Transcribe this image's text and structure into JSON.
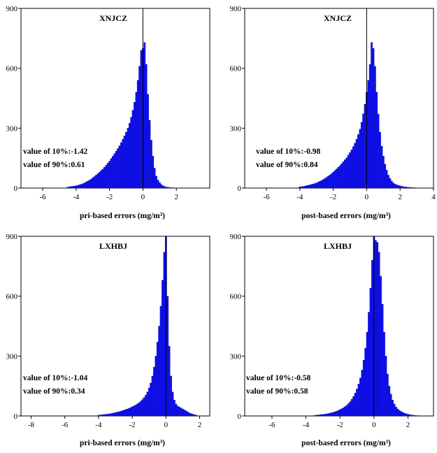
{
  "chart_data": [
    {
      "type": "bar",
      "title": "XNJCZ",
      "xlabel": "pri-based errors (mg/m³)",
      "ylabel": "",
      "xlim": [
        -7.3,
        4
      ],
      "ylim": [
        0,
        900
      ],
      "xticks": [
        -6,
        -4,
        -2,
        0,
        2
      ],
      "yticks": [
        0,
        300,
        600,
        900
      ],
      "annotations": [
        "value of 10%:-1.42",
        "value of 90%:0.61"
      ],
      "bin_width": 0.1,
      "x": [
        -4.5,
        -4.4,
        -4.3,
        -4.2,
        -4.1,
        -4.0,
        -3.9,
        -3.8,
        -3.7,
        -3.6,
        -3.5,
        -3.4,
        -3.3,
        -3.2,
        -3.1,
        -3.0,
        -2.9,
        -2.8,
        -2.7,
        -2.6,
        -2.5,
        -2.4,
        -2.3,
        -2.2,
        -2.1,
        -2.0,
        -1.9,
        -1.8,
        -1.7,
        -1.6,
        -1.5,
        -1.4,
        -1.3,
        -1.2,
        -1.1,
        -1.0,
        -0.9,
        -0.8,
        -0.7,
        -0.6,
        -0.5,
        -0.4,
        -0.3,
        -0.2,
        -0.1,
        0.0,
        0.1,
        0.2,
        0.3,
        0.4,
        0.5,
        0.6,
        0.7,
        0.8,
        0.9,
        1.0,
        1.1,
        1.2,
        1.3,
        1.4,
        1.5,
        1.6,
        1.7,
        1.8,
        1.9,
        2.0,
        2.1,
        2.2,
        2.3,
        2.4
      ],
      "values": [
        5,
        6,
        8,
        9,
        10,
        12,
        14,
        16,
        19,
        22,
        26,
        30,
        35,
        40,
        45,
        52,
        58,
        65,
        72,
        80,
        88,
        95,
        105,
        115,
        125,
        135,
        148,
        160,
        172,
        185,
        198,
        212,
        228,
        245,
        262,
        280,
        300,
        325,
        355,
        390,
        430,
        480,
        540,
        610,
        690,
        700,
        730,
        620,
        470,
        340,
        240,
        160,
        100,
        60,
        40,
        28,
        18,
        12,
        8,
        5,
        4,
        3,
        2,
        2,
        1,
        1,
        1,
        1,
        0,
        0
      ]
    },
    {
      "type": "bar",
      "title": "XNJCZ",
      "xlabel": "post-based errors (mg/m³)",
      "ylabel": "",
      "xlim": [
        -7.3,
        4
      ],
      "ylim": [
        0,
        900
      ],
      "xticks": [
        -6,
        -4,
        -2,
        0,
        2,
        4
      ],
      "yticks": [
        0,
        300,
        600,
        900
      ],
      "annotations": [
        "value of 10%:-0.98",
        "value of 90%:0.84"
      ],
      "bin_width": 0.1,
      "x": [
        -4.0,
        -3.9,
        -3.8,
        -3.7,
        -3.6,
        -3.5,
        -3.4,
        -3.3,
        -3.2,
        -3.1,
        -3.0,
        -2.9,
        -2.8,
        -2.7,
        -2.6,
        -2.5,
        -2.4,
        -2.3,
        -2.2,
        -2.1,
        -2.0,
        -1.9,
        -1.8,
        -1.7,
        -1.6,
        -1.5,
        -1.4,
        -1.3,
        -1.2,
        -1.1,
        -1.0,
        -0.9,
        -0.8,
        -0.7,
        -0.6,
        -0.5,
        -0.4,
        -0.3,
        -0.2,
        -0.1,
        0.0,
        0.1,
        0.2,
        0.3,
        0.4,
        0.5,
        0.6,
        0.7,
        0.8,
        0.9,
        1.0,
        1.1,
        1.2,
        1.3,
        1.4,
        1.5,
        1.6,
        1.7,
        1.8,
        1.9,
        2.0,
        2.1,
        2.2,
        2.3,
        2.4,
        2.5,
        2.6,
        2.7,
        2.8,
        2.9,
        3.0
      ],
      "values": [
        6,
        7,
        8,
        10,
        12,
        14,
        16,
        18,
        20,
        23,
        26,
        30,
        34,
        38,
        43,
        48,
        54,
        60,
        66,
        72,
        80,
        88,
        96,
        104,
        112,
        122,
        132,
        142,
        152,
        165,
        178,
        192,
        208,
        225,
        245,
        268,
        295,
        330,
        372,
        420,
        480,
        540,
        620,
        730,
        700,
        610,
        480,
        370,
        280,
        210,
        160,
        120,
        90,
        65,
        48,
        35,
        26,
        20,
        16,
        13,
        11,
        9,
        7,
        6,
        5,
        4,
        3,
        3,
        2,
        2,
        1
      ]
    },
    {
      "type": "bar",
      "title": "LXHBJ",
      "xlabel": "pri-based errors (mg/m³)",
      "ylabel": "",
      "xlim": [
        -8.6,
        2.6
      ],
      "ylim": [
        0,
        900
      ],
      "xticks": [
        -8,
        -6,
        -4,
        -2,
        0,
        2
      ],
      "yticks": [
        0,
        300,
        600,
        900
      ],
      "annotations": [
        "value of 10%:-1.04",
        "value of 90%:0.34"
      ],
      "bin_width": 0.1,
      "x": [
        -4.0,
        -3.9,
        -3.8,
        -3.7,
        -3.6,
        -3.5,
        -3.4,
        -3.3,
        -3.2,
        -3.1,
        -3.0,
        -2.9,
        -2.8,
        -2.7,
        -2.6,
        -2.5,
        -2.4,
        -2.3,
        -2.2,
        -2.1,
        -2.0,
        -1.9,
        -1.8,
        -1.7,
        -1.6,
        -1.5,
        -1.4,
        -1.3,
        -1.2,
        -1.1,
        -1.0,
        -0.9,
        -0.8,
        -0.7,
        -0.6,
        -0.5,
        -0.4,
        -0.3,
        -0.2,
        -0.1,
        0.0,
        0.1,
        0.2,
        0.3,
        0.4,
        0.5,
        0.6,
        0.7,
        0.8,
        0.9,
        1.0,
        1.1,
        1.2,
        1.3,
        1.4,
        1.5,
        1.6,
        1.7,
        1.8
      ],
      "values": [
        4,
        5,
        6,
        7,
        8,
        9,
        10,
        11,
        13,
        15,
        17,
        19,
        21,
        23,
        26,
        29,
        32,
        35,
        38,
        42,
        46,
        50,
        55,
        60,
        66,
        73,
        82,
        92,
        104,
        120,
        140,
        165,
        200,
        245,
        300,
        370,
        450,
        550,
        680,
        820,
        900,
        600,
        350,
        200,
        120,
        80,
        60,
        50,
        45,
        40,
        35,
        30,
        25,
        20,
        15,
        12,
        9,
        6,
        4
      ]
    },
    {
      "type": "bar",
      "title": "LXHBJ",
      "xlabel": "post-based errors (mg/m³)",
      "ylabel": "",
      "xlim": [
        -7.6,
        3.5
      ],
      "ylim": [
        0,
        900
      ],
      "xticks": [
        -6,
        -4,
        -2,
        0,
        2
      ],
      "yticks": [
        0,
        300,
        600,
        900
      ],
      "annotations": [
        "value of 10%:-0.58",
        "value of 90%:0.58"
      ],
      "bin_width": 0.1,
      "x": [
        -3.5,
        -3.4,
        -3.3,
        -3.2,
        -3.1,
        -3.0,
        -2.9,
        -2.8,
        -2.7,
        -2.6,
        -2.5,
        -2.4,
        -2.3,
        -2.2,
        -2.1,
        -2.0,
        -1.9,
        -1.8,
        -1.7,
        -1.6,
        -1.5,
        -1.4,
        -1.3,
        -1.2,
        -1.1,
        -1.0,
        -0.9,
        -0.8,
        -0.7,
        -0.6,
        -0.5,
        -0.4,
        -0.3,
        -0.2,
        -0.1,
        0.0,
        0.1,
        0.2,
        0.3,
        0.4,
        0.5,
        0.6,
        0.7,
        0.8,
        0.9,
        1.0,
        1.1,
        1.2,
        1.3,
        1.4,
        1.5,
        1.6,
        1.7,
        1.8,
        1.9,
        2.0,
        2.1,
        2.2,
        2.3,
        2.4,
        2.5,
        2.6
      ],
      "values": [
        3,
        4,
        5,
        6,
        7,
        8,
        9,
        10,
        12,
        14,
        16,
        18,
        21,
        24,
        28,
        32,
        36,
        41,
        47,
        54,
        62,
        72,
        84,
        98,
        115,
        135,
        160,
        190,
        230,
        280,
        340,
        420,
        520,
        640,
        780,
        900,
        880,
        870,
        820,
        700,
        560,
        420,
        300,
        210,
        150,
        110,
        80,
        60,
        45,
        35,
        28,
        22,
        18,
        14,
        11,
        9,
        7,
        5,
        4,
        3,
        2,
        2
      ]
    }
  ]
}
